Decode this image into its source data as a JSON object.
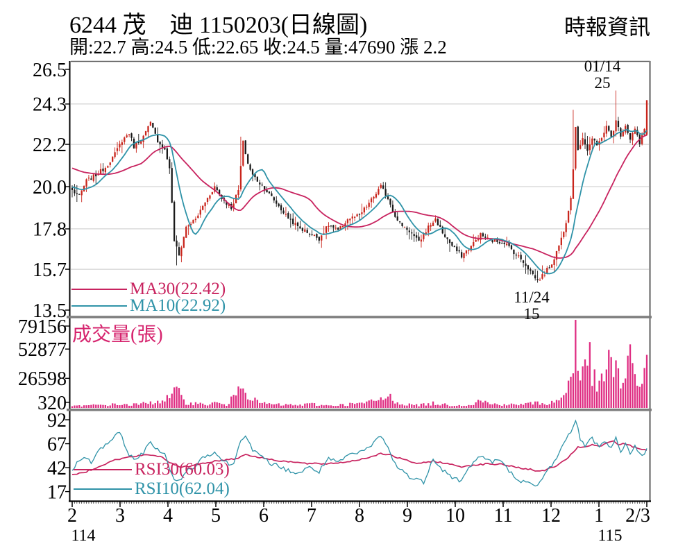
{
  "header": {
    "title": "6244 茂　迪 1150203(日線圖)",
    "subtitle": "開:22.7 高:24.5 低:22.65 收:24.5 量:47690 漲 2.2",
    "brand": "時報資訊"
  },
  "main_chart": {
    "legend_ma30": "MA30(22.42)",
    "legend_ma10": "MA10(22.92)",
    "annotation_high_date": "01/14",
    "annotation_high_value": "25",
    "annotation_low_date": "11/24",
    "annotation_low_value": "15"
  },
  "volume_chart": {
    "label": "成交量(張)"
  },
  "rsi_chart": {
    "legend_rsi30": "RSI30(60.03)",
    "legend_rsi10": "RSI10(62.04)"
  },
  "chart_data": {
    "type": "candlestick+volume+rsi",
    "title": "6244 茂迪 1150203 日線圖",
    "last_day": {
      "open": 22.7,
      "high": 24.5,
      "low": 22.65,
      "close": 24.5,
      "volume": 47690,
      "change": 2.2
    },
    "indicators_last": {
      "ma30": 22.42,
      "ma10": 22.92,
      "rsi30": 60.03,
      "rsi10": 62.04
    },
    "x_axis": {
      "month_ticks": [
        "2",
        "3",
        "4",
        "5",
        "6",
        "7",
        "8",
        "9",
        "10",
        "11",
        "12",
        "1",
        "2/3"
      ],
      "year_labels": [
        {
          "label": "114",
          "month_index": 0
        },
        {
          "label": "115",
          "month_index": 11
        }
      ],
      "total_days": 243
    },
    "price_axis": {
      "ticks": [
        26.5,
        24.3,
        22.2,
        20.0,
        17.8,
        15.7,
        13.5
      ],
      "range": [
        13.5,
        26.5
      ]
    },
    "volume_axis": {
      "ticks": [
        79156,
        52877,
        26598,
        320
      ],
      "range": [
        0,
        79156
      ]
    },
    "rsi_axis": {
      "ticks": [
        92,
        67,
        42,
        17
      ],
      "range": [
        8,
        100
      ]
    },
    "highlights": {
      "high": {
        "day": 229,
        "price": 25.0,
        "date": "01/14"
      },
      "low": {
        "day": 196,
        "price": 15.0,
        "date": "11/24"
      }
    },
    "series": {
      "close_anchors": [
        [
          0,
          19.8
        ],
        [
          3,
          19.5
        ],
        [
          6,
          20.3
        ],
        [
          10,
          20.6
        ],
        [
          14,
          21.0
        ],
        [
          18,
          21.7
        ],
        [
          21,
          22.4
        ],
        [
          24,
          22.8
        ],
        [
          26,
          22.1
        ],
        [
          30,
          22.6
        ],
        [
          33,
          23.3
        ],
        [
          36,
          22.4
        ],
        [
          39,
          21.9
        ],
        [
          41,
          21.0
        ],
        [
          43,
          17.2
        ],
        [
          45,
          16.4
        ],
        [
          48,
          17.9
        ],
        [
          52,
          18.3
        ],
        [
          56,
          19.2
        ],
        [
          60,
          20.0
        ],
        [
          63,
          19.4
        ],
        [
          67,
          18.9
        ],
        [
          70,
          19.8
        ],
        [
          72,
          22.3
        ],
        [
          74,
          21.2
        ],
        [
          76,
          20.6
        ],
        [
          81,
          19.9
        ],
        [
          85,
          19.3
        ],
        [
          90,
          18.5
        ],
        [
          95,
          17.9
        ],
        [
          101,
          17.5
        ],
        [
          104,
          17.3
        ],
        [
          108,
          18.0
        ],
        [
          112,
          17.7
        ],
        [
          116,
          18.3
        ],
        [
          121,
          18.5
        ],
        [
          126,
          19.3
        ],
        [
          130,
          20.0
        ],
        [
          133,
          19.4
        ],
        [
          137,
          18.2
        ],
        [
          142,
          17.7
        ],
        [
          146,
          17.1
        ],
        [
          150,
          17.9
        ],
        [
          153,
          18.3
        ],
        [
          156,
          17.6
        ],
        [
          160,
          16.9
        ],
        [
          164,
          16.4
        ],
        [
          168,
          16.9
        ],
        [
          172,
          17.5
        ],
        [
          176,
          17.2
        ],
        [
          182,
          17.1
        ],
        [
          186,
          16.6
        ],
        [
          190,
          16.1
        ],
        [
          193,
          15.6
        ],
        [
          196,
          15.1
        ],
        [
          199,
          15.5
        ],
        [
          202,
          16.0
        ],
        [
          204,
          16.6
        ],
        [
          206,
          17.3
        ],
        [
          208,
          18.2
        ],
        [
          210,
          19.5
        ],
        [
          211,
          20.9
        ],
        [
          212,
          23.2
        ],
        [
          213,
          21.8
        ],
        [
          215,
          22.6
        ],
        [
          217,
          21.9
        ],
        [
          219,
          22.5
        ],
        [
          221,
          22.1
        ],
        [
          223,
          22.6
        ],
        [
          225,
          23.1
        ],
        [
          227,
          22.6
        ],
        [
          229,
          23.4
        ],
        [
          231,
          22.7
        ],
        [
          233,
          23.2
        ],
        [
          235,
          22.5
        ],
        [
          237,
          23.0
        ],
        [
          239,
          22.2
        ],
        [
          240,
          22.6
        ],
        [
          241,
          23.0
        ],
        [
          242,
          24.5
        ]
      ],
      "high_overrides": [
        [
          71,
          22.6
        ],
        [
          211,
          24.0
        ],
        [
          229,
          25.0
        ]
      ],
      "low_overrides": [
        [
          44,
          15.9
        ],
        [
          196,
          15.0
        ]
      ],
      "ma30_seed": 21.0,
      "ma10_seed": 20.0,
      "volume_anchors": [
        [
          0,
          1500
        ],
        [
          10,
          2500
        ],
        [
          20,
          3200
        ],
        [
          25,
          2800
        ],
        [
          33,
          4500
        ],
        [
          41,
          9000
        ],
        [
          44,
          15000
        ],
        [
          48,
          5000
        ],
        [
          56,
          3000
        ],
        [
          60,
          4500
        ],
        [
          66,
          2500
        ],
        [
          71,
          26000
        ],
        [
          72,
          30000
        ],
        [
          74,
          12000
        ],
        [
          78,
          5000
        ],
        [
          85,
          3000
        ],
        [
          95,
          2500
        ],
        [
          101,
          3500
        ],
        [
          106,
          2200
        ],
        [
          112,
          2600
        ],
        [
          118,
          3500
        ],
        [
          124,
          4500
        ],
        [
          130,
          8000
        ],
        [
          134,
          9500
        ],
        [
          138,
          4000
        ],
        [
          142,
          3000
        ],
        [
          146,
          2500
        ],
        [
          152,
          4000
        ],
        [
          158,
          2800
        ],
        [
          163,
          2500
        ],
        [
          168,
          3000
        ],
        [
          172,
          7000
        ],
        [
          176,
          3500
        ],
        [
          182,
          3200
        ],
        [
          186,
          2800
        ],
        [
          190,
          3500
        ],
        [
          196,
          4500
        ],
        [
          200,
          3800
        ],
        [
          204,
          6000
        ],
        [
          206,
          9000
        ],
        [
          208,
          15000
        ],
        [
          210,
          30000
        ],
        [
          211,
          45000
        ],
        [
          212,
          79156
        ],
        [
          213,
          40000
        ],
        [
          214,
          26000
        ],
        [
          216,
          33000
        ],
        [
          218,
          46000
        ],
        [
          220,
          24000
        ],
        [
          222,
          17000
        ],
        [
          224,
          30000
        ],
        [
          226,
          40000
        ],
        [
          228,
          33000
        ],
        [
          229,
          46000
        ],
        [
          231,
          20000
        ],
        [
          233,
          25000
        ],
        [
          235,
          42000
        ],
        [
          237,
          30000
        ],
        [
          239,
          22000
        ],
        [
          240,
          28000
        ],
        [
          241,
          34000
        ],
        [
          242,
          47690
        ]
      ],
      "rsi10_anchors": [
        [
          0,
          40
        ],
        [
          4,
          52
        ],
        [
          8,
          48
        ],
        [
          12,
          62
        ],
        [
          16,
          70
        ],
        [
          20,
          78
        ],
        [
          23,
          60
        ],
        [
          26,
          50
        ],
        [
          30,
          58
        ],
        [
          33,
          68
        ],
        [
          36,
          62
        ],
        [
          39,
          55
        ],
        [
          41,
          40
        ],
        [
          44,
          26
        ],
        [
          48,
          38
        ],
        [
          52,
          45
        ],
        [
          56,
          55
        ],
        [
          60,
          58
        ],
        [
          64,
          48
        ],
        [
          68,
          45
        ],
        [
          71,
          72
        ],
        [
          73,
          77
        ],
        [
          76,
          60
        ],
        [
          80,
          52
        ],
        [
          85,
          45
        ],
        [
          90,
          40
        ],
        [
          95,
          36
        ],
        [
          100,
          42
        ],
        [
          104,
          38
        ],
        [
          108,
          52
        ],
        [
          112,
          46
        ],
        [
          116,
          55
        ],
        [
          121,
          57
        ],
        [
          126,
          65
        ],
        [
          130,
          76
        ],
        [
          133,
          62
        ],
        [
          137,
          42
        ],
        [
          141,
          35
        ],
        [
          144,
          30
        ],
        [
          148,
          27
        ],
        [
          152,
          52
        ],
        [
          156,
          40
        ],
        [
          160,
          32
        ],
        [
          164,
          28
        ],
        [
          168,
          45
        ],
        [
          172,
          55
        ],
        [
          176,
          48
        ],
        [
          180,
          50
        ],
        [
          184,
          38
        ],
        [
          188,
          30
        ],
        [
          192,
          25
        ],
        [
          196,
          22
        ],
        [
          199,
          35
        ],
        [
          202,
          45
        ],
        [
          205,
          58
        ],
        [
          208,
          70
        ],
        [
          211,
          85
        ],
        [
          212,
          93
        ],
        [
          214,
          72
        ],
        [
          216,
          65
        ],
        [
          219,
          72
        ],
        [
          222,
          65
        ],
        [
          225,
          70
        ],
        [
          227,
          62
        ],
        [
          229,
          72
        ],
        [
          231,
          60
        ],
        [
          233,
          66
        ],
        [
          235,
          58
        ],
        [
          237,
          65
        ],
        [
          239,
          55
        ],
        [
          241,
          58
        ],
        [
          242,
          62
        ]
      ],
      "rsi30_anchors": [
        [
          0,
          34
        ],
        [
          6,
          38
        ],
        [
          12,
          44
        ],
        [
          18,
          50
        ],
        [
          24,
          53
        ],
        [
          30,
          55
        ],
        [
          34,
          55
        ],
        [
          38,
          53
        ],
        [
          42,
          46
        ],
        [
          46,
          42
        ],
        [
          52,
          45
        ],
        [
          58,
          48
        ],
        [
          64,
          50
        ],
        [
          70,
          52
        ],
        [
          73,
          56
        ],
        [
          78,
          53
        ],
        [
          85,
          50
        ],
        [
          92,
          48
        ],
        [
          100,
          46
        ],
        [
          106,
          46
        ],
        [
          112,
          47
        ],
        [
          118,
          49
        ],
        [
          124,
          52
        ],
        [
          130,
          57
        ],
        [
          134,
          55
        ],
        [
          140,
          50
        ],
        [
          146,
          46
        ],
        [
          152,
          49
        ],
        [
          158,
          46
        ],
        [
          164,
          43
        ],
        [
          170,
          45
        ],
        [
          176,
          46
        ],
        [
          182,
          45
        ],
        [
          188,
          42
        ],
        [
          193,
          40
        ],
        [
          196,
          38
        ],
        [
          200,
          40
        ],
        [
          204,
          44
        ],
        [
          208,
          50
        ],
        [
          211,
          58
        ],
        [
          213,
          64
        ],
        [
          216,
          63
        ],
        [
          219,
          66
        ],
        [
          222,
          64
        ],
        [
          225,
          67
        ],
        [
          228,
          70
        ],
        [
          230,
          66
        ],
        [
          233,
          67
        ],
        [
          236,
          64
        ],
        [
          239,
          62
        ],
        [
          242,
          60
        ]
      ]
    },
    "colors": {
      "up": "#c9251c",
      "down": "#1a1a1a",
      "ma30": "#c8235f",
      "ma10": "#2f93a8",
      "volume": "#df2e83",
      "volume_label": "#d6246e",
      "grid": "#c9c9c9",
      "separator": "#7d7d7d",
      "axis": "#000000",
      "right_border": "#808080"
    }
  }
}
